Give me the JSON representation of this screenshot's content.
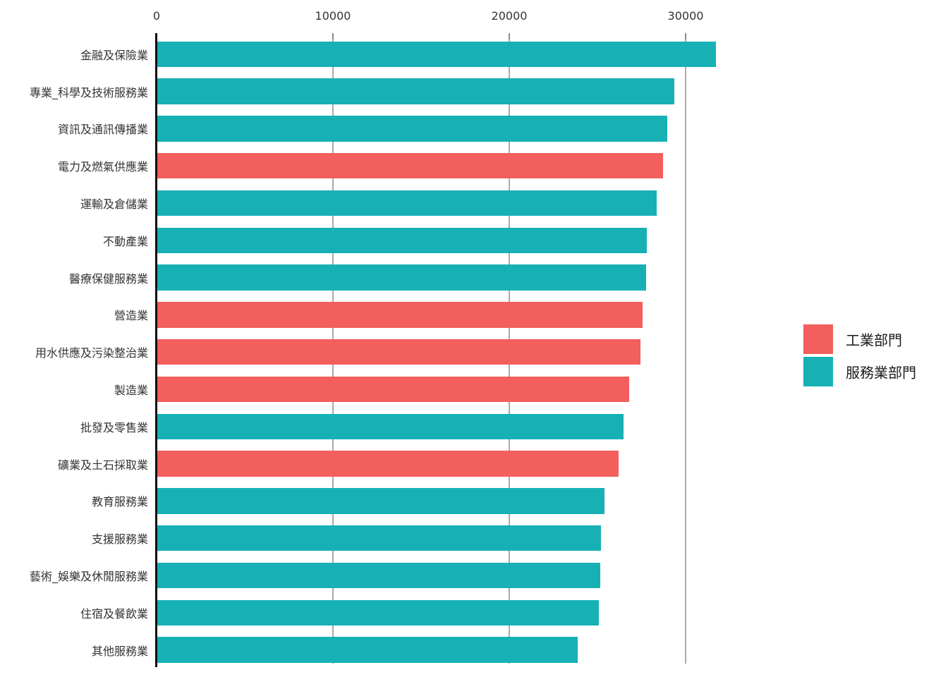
{
  "chart_data": {
    "type": "bar",
    "orientation": "horizontal",
    "title": "",
    "xlabel": "",
    "ylabel": "",
    "xlim": [
      0,
      35500
    ],
    "x_ticks": [
      0,
      10000,
      20000,
      30000
    ],
    "grid": true,
    "legend_position": "right",
    "colors": {
      "industry": "#F25F5C",
      "service": "#17B1B5",
      "gridline": "#AAAAAA",
      "tick": "#8C8C8C",
      "axis_line": "#0D0D0D",
      "text": "#333333"
    },
    "legend": [
      {
        "key": "industry",
        "label": "工業部門",
        "color": "#F25F5C"
      },
      {
        "key": "service",
        "label": "服務業部門",
        "color": "#17B1B5"
      }
    ],
    "items": [
      {
        "label": "金融及保險業",
        "value": 31680,
        "sector": "service"
      },
      {
        "label": "專業_科學及技術服務業",
        "value": 29330,
        "sector": "service"
      },
      {
        "label": "資訊及通訊傳播業",
        "value": 28920,
        "sector": "service"
      },
      {
        "label": "電力及燃氣供應業",
        "value": 28690,
        "sector": "industry"
      },
      {
        "label": "運輸及倉儲業",
        "value": 28320,
        "sector": "service"
      },
      {
        "label": "不動產業",
        "value": 27790,
        "sector": "service"
      },
      {
        "label": "醫療保健服務業",
        "value": 27720,
        "sector": "service"
      },
      {
        "label": "營造業",
        "value": 27520,
        "sector": "industry"
      },
      {
        "label": "用水供應及污染整治業",
        "value": 27410,
        "sector": "industry"
      },
      {
        "label": "製造業",
        "value": 26760,
        "sector": "industry"
      },
      {
        "label": "批發及零售業",
        "value": 26440,
        "sector": "service"
      },
      {
        "label": "礦業及土石採取業",
        "value": 26160,
        "sector": "industry"
      },
      {
        "label": "教育服務業",
        "value": 25390,
        "sector": "service"
      },
      {
        "label": "支援服務業",
        "value": 25190,
        "sector": "service"
      },
      {
        "label": "藝術_娛樂及休閒服務業",
        "value": 25120,
        "sector": "service"
      },
      {
        "label": "住宿及餐飲業",
        "value": 25050,
        "sector": "service"
      },
      {
        "label": "其他服務業",
        "value": 23860,
        "sector": "service"
      }
    ]
  }
}
